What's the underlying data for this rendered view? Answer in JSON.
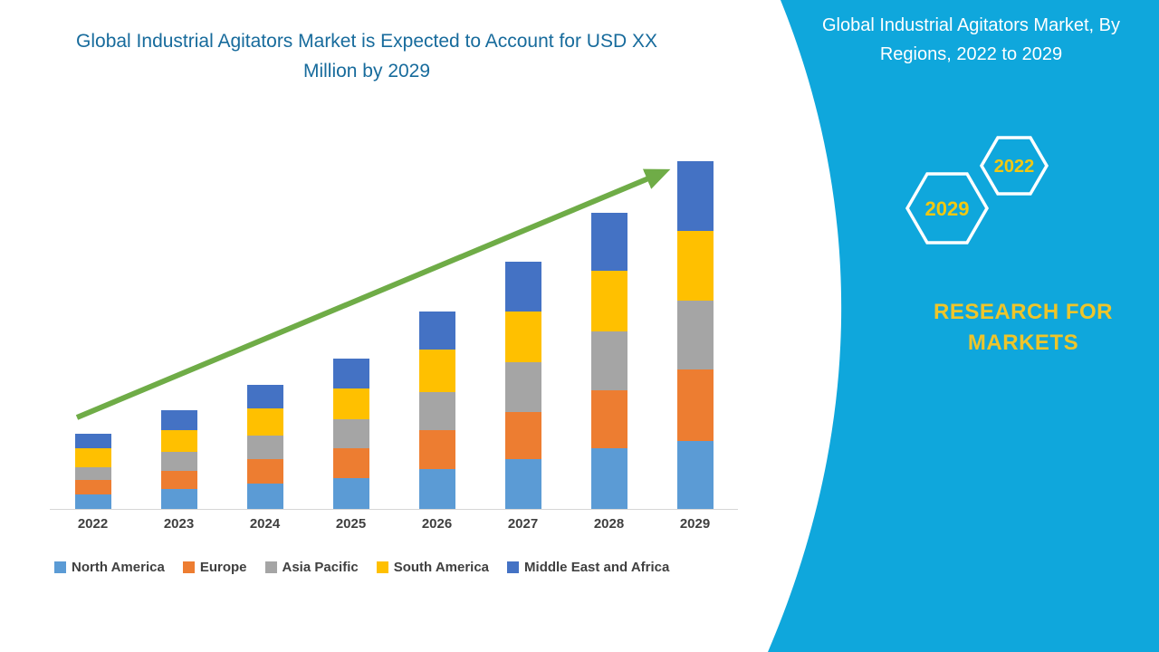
{
  "left": {
    "title": "Global Industrial Agitators Market is Expected to Account for USD XX Million by 2029"
  },
  "chart_data": {
    "type": "bar",
    "stacked": true,
    "title": "Global Industrial Agitators Market is Expected to Account for USD XX Million by 2029",
    "categories": [
      "2022",
      "2023",
      "2024",
      "2025",
      "2026",
      "2027",
      "2028",
      "2029"
    ],
    "series": [
      {
        "name": "North America",
        "color": "#5B9BD5",
        "values": [
          4,
          5.5,
          7,
          8.5,
          11,
          13.5,
          16.5,
          18.5
        ]
      },
      {
        "name": "Europe",
        "color": "#ED7D31",
        "values": [
          4,
          5,
          6.5,
          8,
          10.5,
          13,
          16,
          19.5
        ]
      },
      {
        "name": "Asia Pacific",
        "color": "#A5A5A5",
        "values": [
          3.5,
          5,
          6.5,
          8,
          10.5,
          13.5,
          16,
          19
        ]
      },
      {
        "name": "South America",
        "color": "#FFC000",
        "values": [
          5,
          6,
          7.5,
          8.5,
          11.5,
          14,
          16.5,
          19
        ]
      },
      {
        "name": "Middle East and Africa",
        "color": "#4472C4",
        "values": [
          4,
          5.5,
          6.5,
          8,
          10.5,
          13.5,
          16,
          19
        ]
      }
    ],
    "xlabel": "",
    "ylabel": "",
    "y_axis_visible": false,
    "grid": false,
    "legend_position": "bottom",
    "annotations": [
      "green upward trend arrow from 2022 to 2029"
    ],
    "value_unit": "USD Million (values unlabeled, estimated relative units)"
  },
  "right_panel": {
    "title": "Global Industrial Agitators Market, By Regions, 2022 to 2029",
    "hexagons": [
      {
        "label": "2029"
      },
      {
        "label": "2022"
      }
    ],
    "brand": "RESEARCH FOR MARKETS",
    "colors": {
      "background": "#0fa7dc",
      "accent_yellow": "#f2c811",
      "arrow_green": "#6fac47"
    }
  }
}
